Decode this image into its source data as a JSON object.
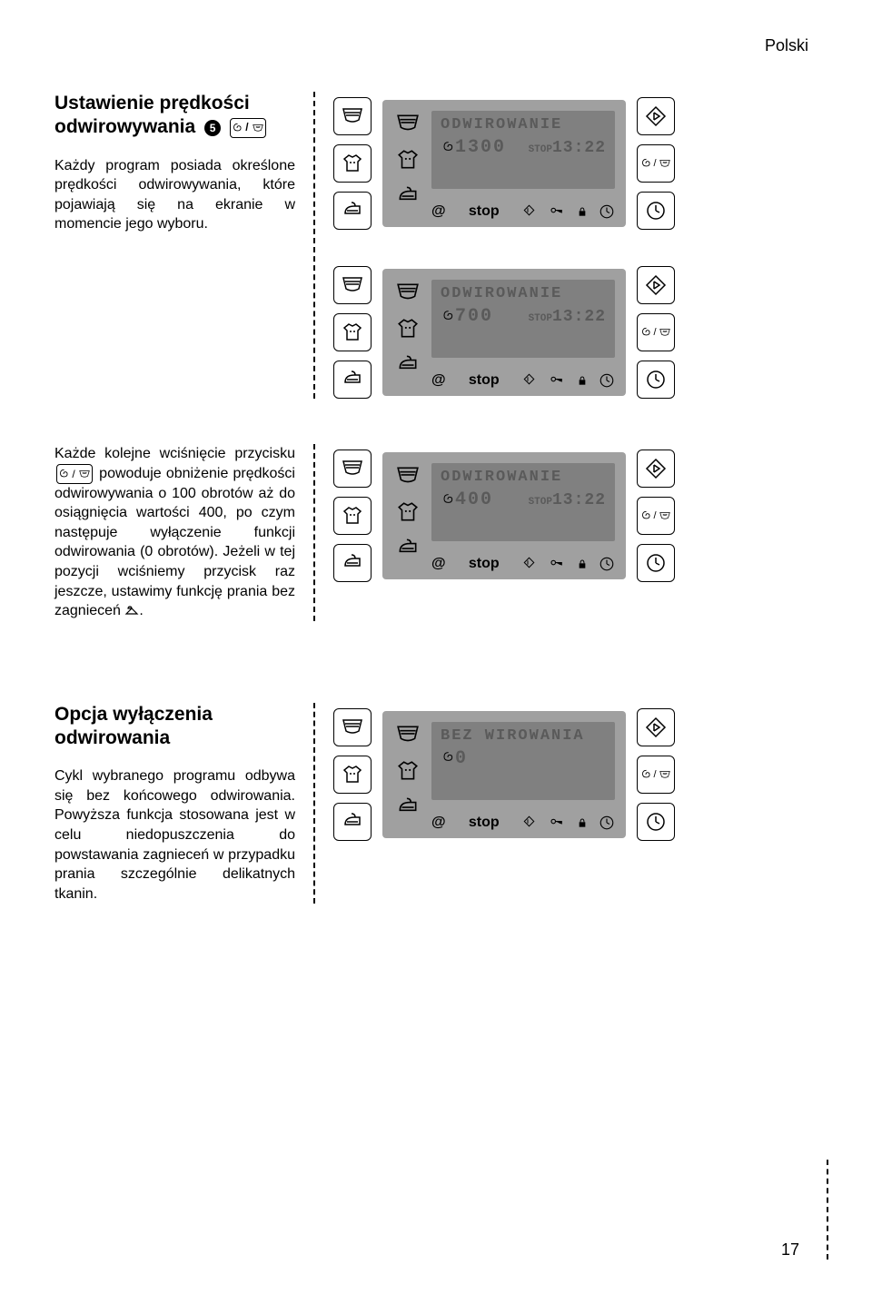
{
  "page": {
    "language_label": "Polski",
    "number": "17"
  },
  "colors": {
    "page_bg": "#ffffff",
    "text": "#000000",
    "lcd_bg": "#a0a0a0",
    "lcd_screen": "#808080",
    "lcd_text": "#5a5a5a"
  },
  "typography": {
    "body_fontsize": 16,
    "heading_fontsize": 21,
    "lcd_fontfamily": "Courier New"
  },
  "icons": {
    "basin": "basin-icon",
    "shirt": "shirt-icon",
    "iron": "iron-icon",
    "start": "start-icon",
    "spin_basin": "spin-basin-icon",
    "clock": "clock-icon",
    "spiral": "spiral-icon",
    "key": "key-icon",
    "lock": "lock-icon",
    "stop_diamond": "stop-diamond-icon",
    "at": "at-icon",
    "hanger": "hanger-icon"
  },
  "section1": {
    "title": "Ustawienie prędkości odwirowywania",
    "step_marker": "5",
    "body": "Każdy program posiada określone prędkości odwirowywania, które pojawiają się na ekranie w momencie jego wyboru."
  },
  "section2": {
    "body_pre": "Każde kolejne wciśnięcie przycisku",
    "body_post": "powoduje obniżenie prędkości odwirowywania o 100 obrotów aż do osiągnięcia wartości 400, po czym następuje wyłączenie funkcji odwirowania (0 obrotów). Jeżeli w tej pozycji wciśniemy przycisk raz jeszcze, ustawimy funkcję prania bez zagnieceń",
    "body_end": "."
  },
  "section3": {
    "title": "Opcja wyłączenia odwirowania",
    "body": "Cykl wybranego programu odbywa się bez końcowego odwirowania. Powyższa funkcja stosowana jest w celu niedopuszczenia do powstawania zagnieceń w przypadku prania szczególnie delikatnych tkanin."
  },
  "displays": [
    {
      "line1": "ODWIROWANIE",
      "speed": "1300",
      "stop": "STOP",
      "time": "13:22",
      "bottom_stop": "stop",
      "at": "@"
    },
    {
      "line1": "ODWIROWANIE",
      "speed": "700",
      "stop": "STOP",
      "time": "13:22",
      "bottom_stop": "stop",
      "at": "@"
    },
    {
      "line1": "ODWIROWANIE",
      "speed": "400",
      "stop": "STOP",
      "time": "13:22",
      "bottom_stop": "stop",
      "at": "@"
    },
    {
      "line1": "BEZ WIROWANIA",
      "speed": "0",
      "stop": "",
      "time": "",
      "bottom_stop": "stop",
      "at": "@"
    }
  ]
}
